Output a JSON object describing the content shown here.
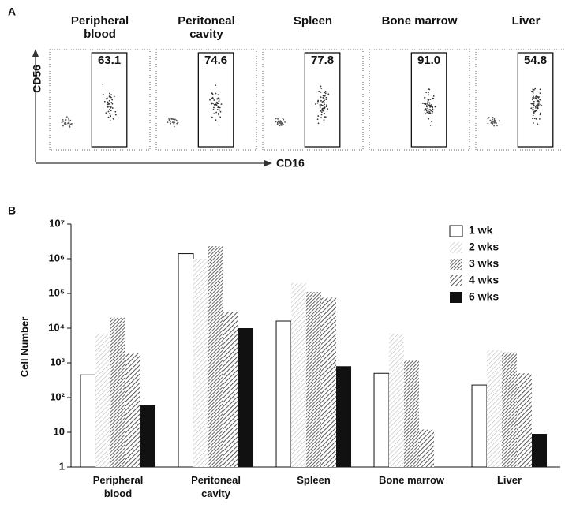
{
  "panel_a": {
    "panel_label": "A",
    "y_axis_label": "CD56",
    "x_axis_label": "CD16",
    "plots": [
      {
        "title": "Peripheral blood",
        "gate_percent": "63.1"
      },
      {
        "title": "Peritoneal cavity",
        "gate_percent": "74.6"
      },
      {
        "title": "Spleen",
        "gate_percent": "77.8"
      },
      {
        "title": "Bone marrow",
        "gate_percent": "91.0"
      },
      {
        "title": "Liver",
        "gate_percent": "54.8"
      }
    ]
  },
  "chart_data": {
    "type": "bar",
    "panel_label": "B",
    "y_label": "Cell Number",
    "log": true,
    "categories": [
      "Peripheral blood",
      "Peritoneal cavity",
      "Spleen",
      "Bone marrow",
      "Liver"
    ],
    "series": [
      {
        "name": "1 wk",
        "color": "#ffffff",
        "values": [
          450,
          1400000,
          16000,
          500,
          230
        ]
      },
      {
        "name": "2 wks",
        "color": "#bbbbbb",
        "values": [
          7000,
          1000000,
          200000,
          7000,
          2300
        ]
      },
      {
        "name": "3 wks",
        "color": "#666666",
        "values": [
          20000,
          2300000,
          110000,
          1200,
          2000
        ]
      },
      {
        "name": "4 wks",
        "color": "#444444",
        "values": [
          1900,
          30000,
          75000,
          12,
          500
        ]
      },
      {
        "name": "6 wks",
        "color": "#111111",
        "values": [
          60,
          10000,
          800,
          null,
          9
        ]
      }
    ],
    "ylim": [
      1,
      10000000
    ],
    "yticks": [
      1,
      10,
      {
        "value": 100,
        "label": "10²"
      },
      {
        "value": 1000,
        "label": "10³"
      },
      {
        "value": 10000,
        "label": "10⁴"
      },
      {
        "value": 100000,
        "label": "10⁵"
      },
      {
        "value": 1000000,
        "label": "10⁶"
      },
      {
        "value": 10000000,
        "label": "10⁷"
      }
    ],
    "legend": "top-right"
  }
}
